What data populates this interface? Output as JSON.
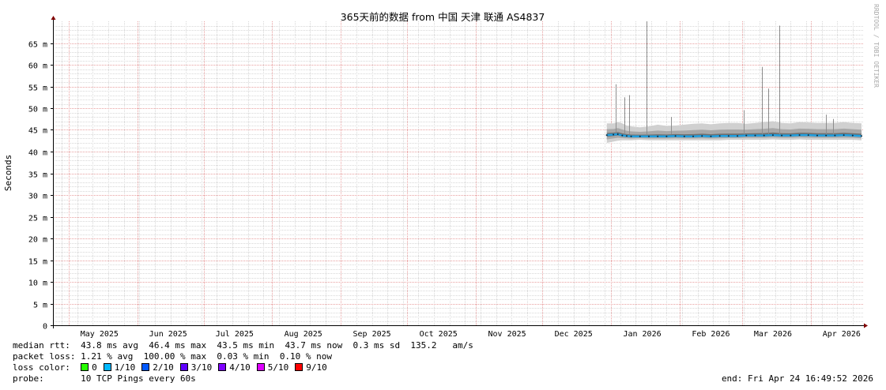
{
  "chart_data": {
    "type": "line",
    "title": "365天前的数据 from 中国 天津 联通 AS4837",
    "ylabel": "Seconds",
    "xlabel": "",
    "ylim": [
      0,
      70
    ],
    "y_ticks": [
      {
        "value": 0,
        "label": "0"
      },
      {
        "value": 5,
        "label": "5 m"
      },
      {
        "value": 10,
        "label": "10 m"
      },
      {
        "value": 15,
        "label": "15 m"
      },
      {
        "value": 20,
        "label": "20 m"
      },
      {
        "value": 25,
        "label": "25 m"
      },
      {
        "value": 30,
        "label": "30 m"
      },
      {
        "value": 35,
        "label": "35 m"
      },
      {
        "value": 40,
        "label": "40 m"
      },
      {
        "value": 45,
        "label": "45 m"
      },
      {
        "value": 50,
        "label": "50 m"
      },
      {
        "value": 55,
        "label": "55 m"
      },
      {
        "value": 60,
        "label": "60 m"
      },
      {
        "value": 65,
        "label": "65 m"
      }
    ],
    "y_unit": "ms",
    "xlim": [
      "2025-04-24",
      "2026-04-24"
    ],
    "x_ticks": [
      {
        "date": "2025-05-15",
        "label": "May 2025"
      },
      {
        "date": "2025-06-15",
        "label": "Jun 2025"
      },
      {
        "date": "2025-07-15",
        "label": "Jul 2025"
      },
      {
        "date": "2025-08-15",
        "label": "Aug 2025"
      },
      {
        "date": "2025-09-15",
        "label": "Sep 2025"
      },
      {
        "date": "2025-10-15",
        "label": "Oct 2025"
      },
      {
        "date": "2025-11-15",
        "label": "Nov 2025"
      },
      {
        "date": "2025-12-15",
        "label": "Dec 2025"
      },
      {
        "date": "2026-01-15",
        "label": "Jan 2026"
      },
      {
        "date": "2026-02-15",
        "label": "Feb 2026"
      },
      {
        "date": "2026-03-15",
        "label": "Mar 2026"
      },
      {
        "date": "2026-04-15",
        "label": "Apr 2026"
      }
    ],
    "grid": true,
    "colors": {
      "median": "#1e9fe0",
      "smoke_light": "#d0d0d0",
      "smoke_mid": "#a8a8a8",
      "smoke_dark": "#707070",
      "grid_minor": "#d8d8d8",
      "grid_major": "#e8a0a0",
      "axis": "#000000",
      "arrow": "#800000"
    },
    "series": [
      {
        "x": [
          "2025-12-30",
          "2026-01-02",
          "2026-01-04",
          "2026-01-06",
          "2026-01-08",
          "2026-01-10",
          "2026-01-14",
          "2026-01-18",
          "2026-01-22",
          "2026-01-26",
          "2026-01-30",
          "2026-02-03",
          "2026-02-07",
          "2026-02-11",
          "2026-02-15",
          "2026-02-19",
          "2026-02-23",
          "2026-02-27",
          "2026-03-03",
          "2026-03-07",
          "2026-03-11",
          "2026-03-15",
          "2026-03-19",
          "2026-03-23",
          "2026-03-27",
          "2026-03-31",
          "2026-04-04",
          "2026-04-08",
          "2026-04-12",
          "2026-04-16",
          "2026-04-20",
          "2026-04-24"
        ],
        "median": [
          43.8,
          43.9,
          44.0,
          43.7,
          43.6,
          43.5,
          43.5,
          43.5,
          43.5,
          43.5,
          43.6,
          43.5,
          43.5,
          43.6,
          43.5,
          43.6,
          43.6,
          43.6,
          43.7,
          43.7,
          43.7,
          43.8,
          43.7,
          43.7,
          43.8,
          43.8,
          43.7,
          43.7,
          43.7,
          43.8,
          43.7,
          43.6
        ],
        "smoke_min": [
          42.0,
          42.3,
          42.5,
          42.6,
          42.6,
          42.6,
          42.7,
          42.6,
          42.6,
          42.6,
          42.6,
          42.6,
          42.6,
          42.6,
          42.6,
          42.6,
          42.7,
          42.7,
          42.7,
          42.7,
          42.7,
          42.8,
          42.7,
          42.7,
          42.8,
          42.7,
          42.7,
          42.7,
          42.7,
          42.7,
          42.7,
          42.6
        ],
        "smoke_max": [
          46.5,
          46.5,
          46.8,
          46.5,
          46.0,
          45.8,
          45.6,
          45.8,
          46.2,
          45.9,
          46.0,
          46.2,
          46.4,
          46.5,
          46.3,
          46.5,
          46.6,
          46.6,
          46.4,
          46.6,
          46.8,
          47.0,
          46.6,
          46.5,
          46.8,
          46.7,
          46.6,
          46.6,
          46.6,
          46.8,
          46.6,
          46.5
        ]
      }
    ],
    "spikes": [
      {
        "date": "2026-01-03",
        "value": 55.5
      },
      {
        "date": "2026-01-07",
        "value": 52.5
      },
      {
        "date": "2026-01-09",
        "value": 53.0
      },
      {
        "date": "2026-01-17",
        "value": 70.0
      },
      {
        "date": "2026-01-28",
        "value": 48.0
      },
      {
        "date": "2026-03-02",
        "value": 49.5
      },
      {
        "date": "2026-03-10",
        "value": 59.5
      },
      {
        "date": "2026-03-13",
        "value": 54.5
      },
      {
        "date": "2026-03-18",
        "value": 69.0
      },
      {
        "date": "2026-04-08",
        "value": 48.5
      },
      {
        "date": "2026-04-11",
        "value": 47.5
      }
    ]
  },
  "watermark": "RRDTOOL / TOBI OETIKER",
  "stats": {
    "median_rtt": {
      "label": "median rtt:",
      "avg": "43.8 ms avg",
      "max": "46.4 ms max",
      "min": "43.5 ms min",
      "now": "43.7 ms now",
      "sd": "0.3 ms sd",
      "ams": "135.2   am/s"
    },
    "packet_loss": {
      "label": "packet loss:",
      "avg": "1.21 % avg",
      "max": "100.00 % max",
      "min": "0.03 % min",
      "now": "0.10 % now"
    },
    "loss_color": {
      "label": "loss color:",
      "items": [
        {
          "label": "0",
          "color": "#26ff00"
        },
        {
          "label": "1/10",
          "color": "#00b8ff"
        },
        {
          "label": "2/10",
          "color": "#0059ff"
        },
        {
          "label": "3/10",
          "color": "#5e00ff"
        },
        {
          "label": "4/10",
          "color": "#7e00ff"
        },
        {
          "label": "5/10",
          "color": "#dd00ff"
        },
        {
          "label": "9/10",
          "color": "#ff0000"
        }
      ]
    },
    "probe": {
      "label": "probe:",
      "value": "10 TCP Pings every 60s"
    },
    "end": "end: Fri Apr 24 16:49:52 2026"
  }
}
